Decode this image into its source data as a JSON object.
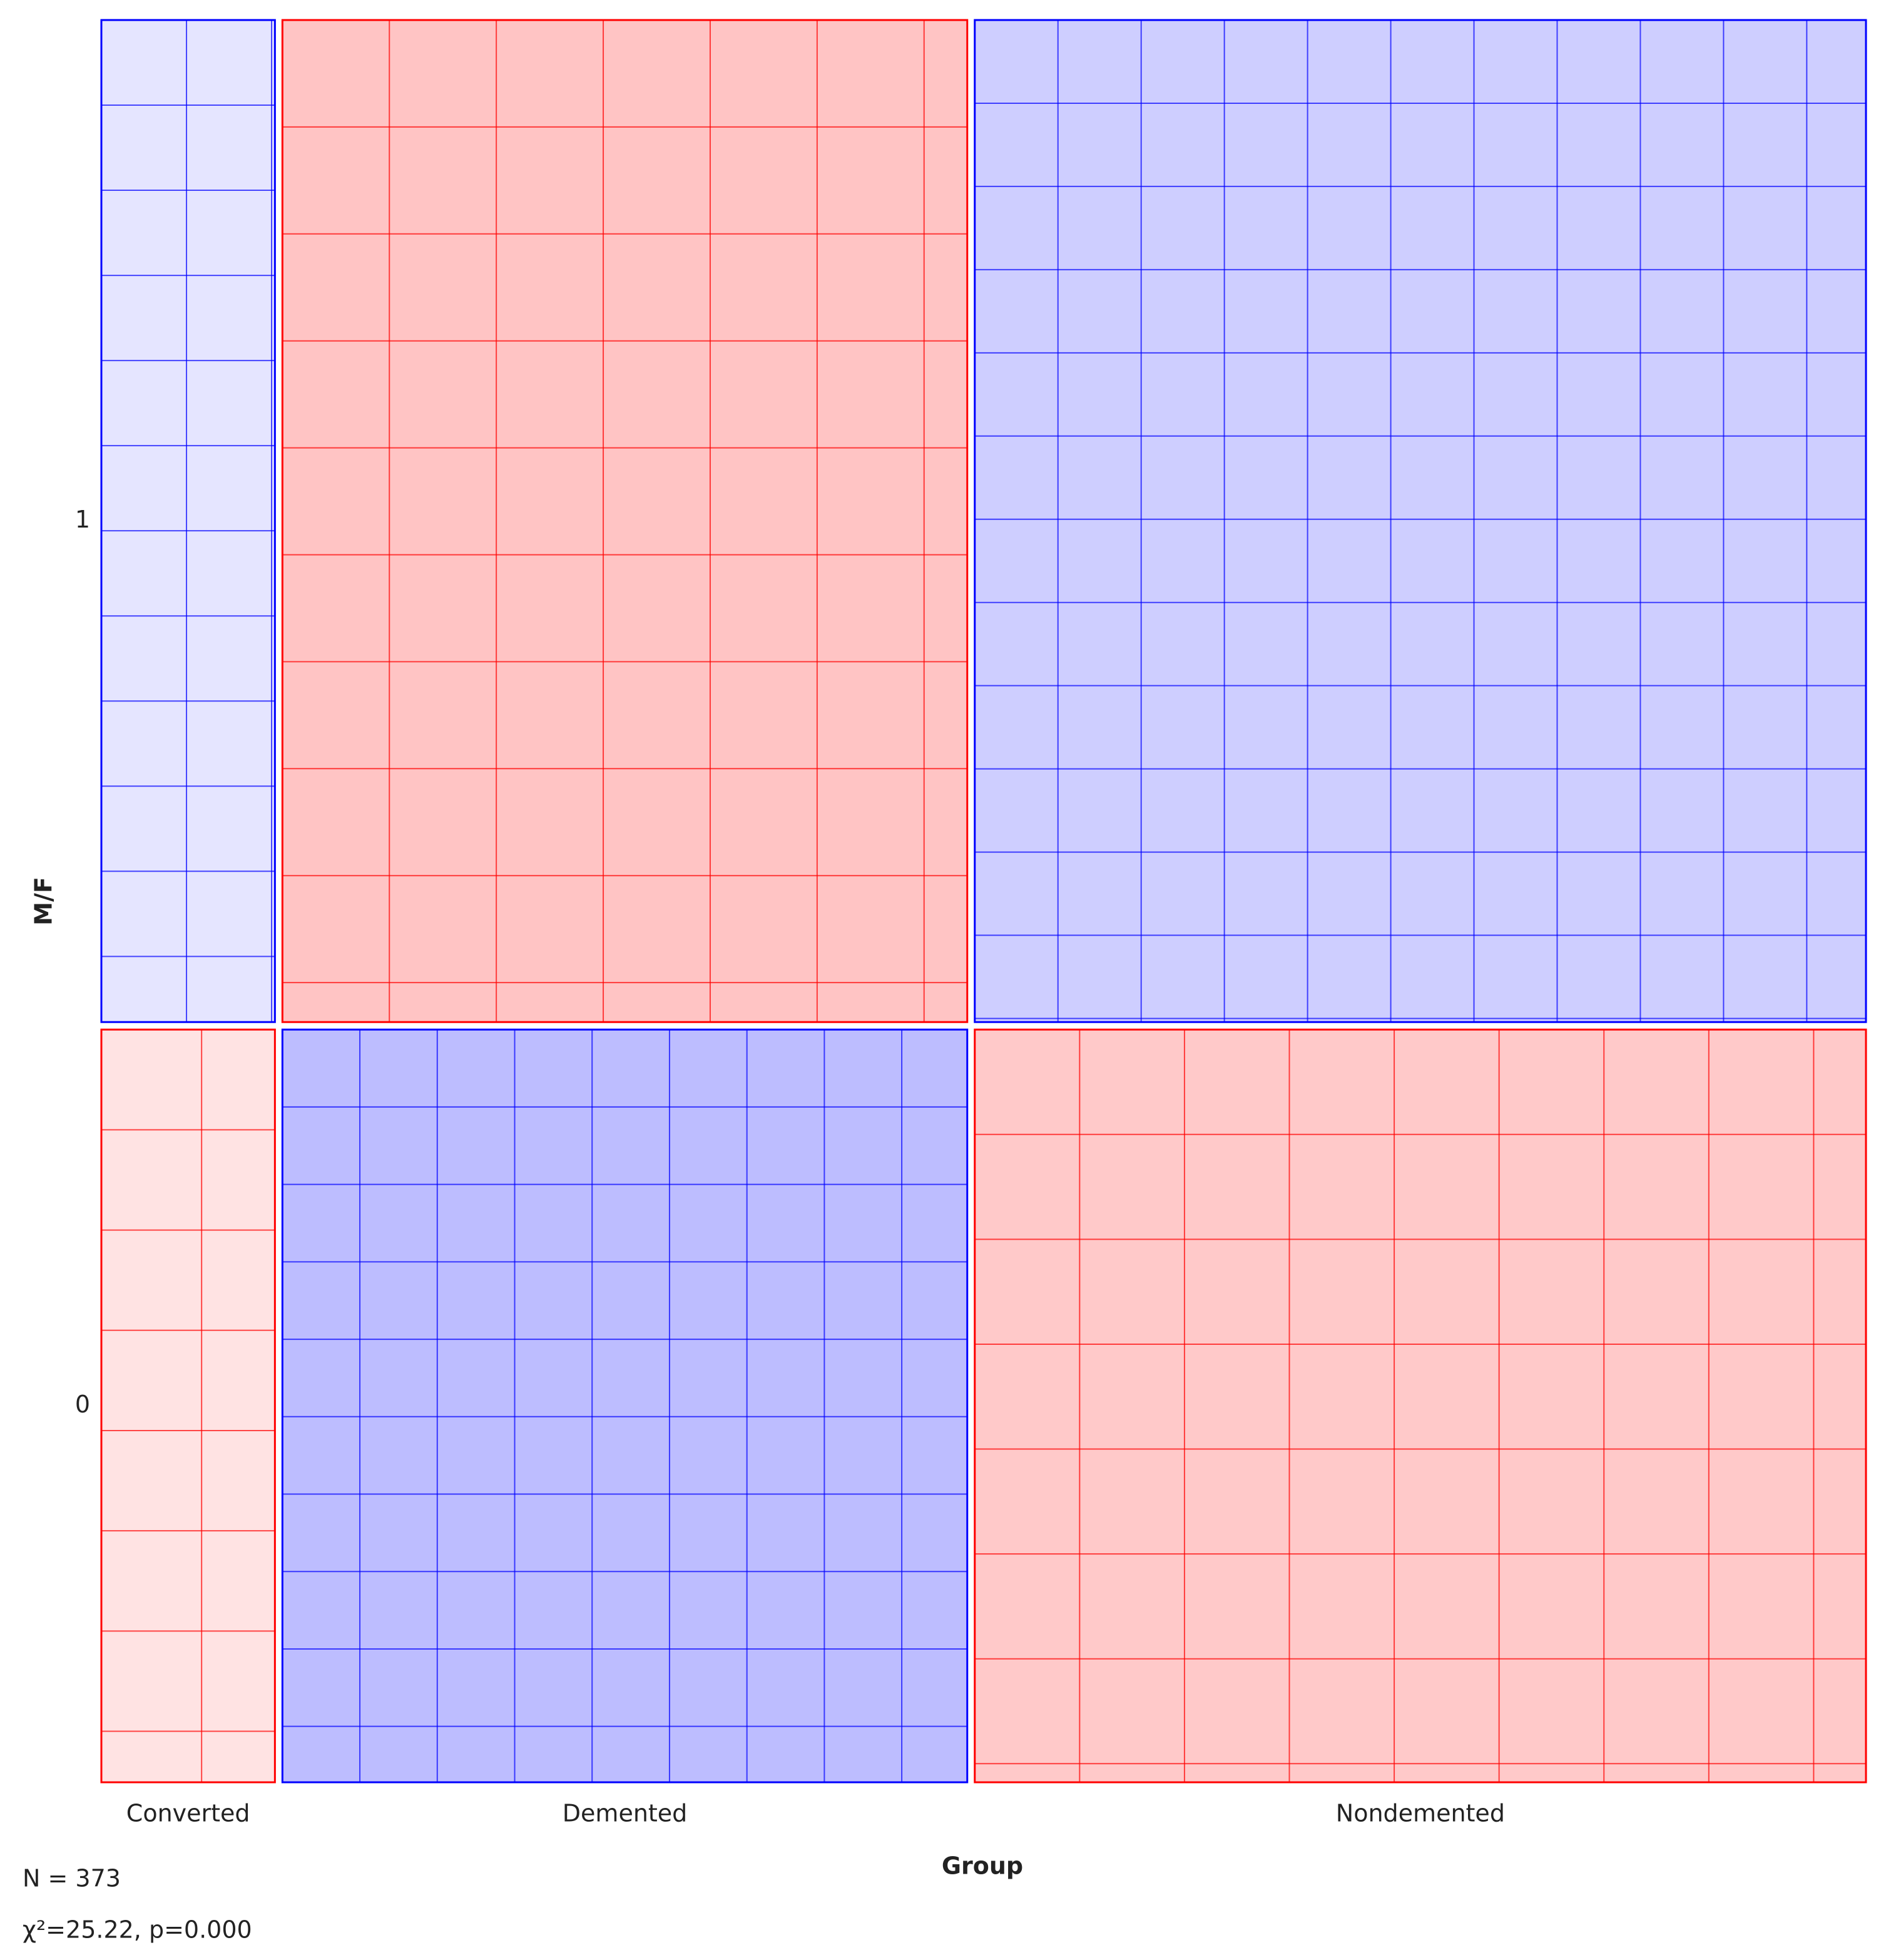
{
  "chart_data": {
    "type": "sieve",
    "x_label": "Group",
    "y_label": "M/F",
    "categories": [
      "Converted",
      "Demented",
      "Nondemented"
    ],
    "rows": [
      "1",
      "0"
    ],
    "counts": [
      [
        24,
        60,
        129
      ],
      [
        13,
        86,
        61
      ]
    ],
    "colors": {
      "above_expected": "#0000ff",
      "below_expected": "#ff0000"
    },
    "n_label": "N = 373",
    "stat_label": "χ²=25.22, p=0.000"
  }
}
